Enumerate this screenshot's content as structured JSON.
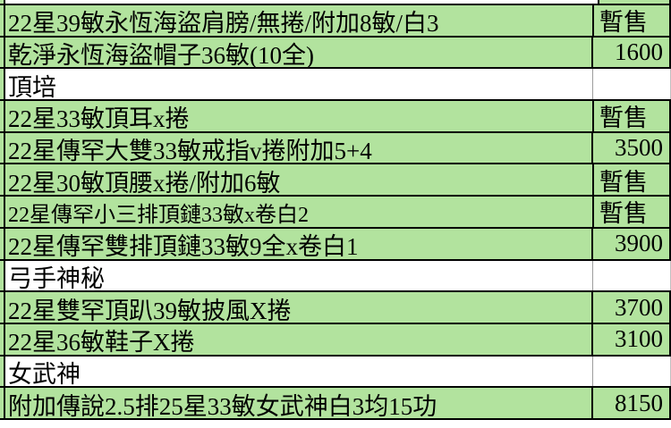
{
  "app": {
    "kind": "spreadsheet-price-list",
    "status_sold_label": "暫售"
  },
  "colors": {
    "row_fill_green": "#b2e39e",
    "grid_border_black": "#000000",
    "gridline_gray": "#9c9c9c"
  },
  "table": {
    "rows": [
      {
        "item": "22星39敏永恆海盜肩膀/無捲/附加8敏/白3",
        "price": "暫售",
        "filled": true,
        "shrink": false
      },
      {
        "item": "乾淨永恆海盜帽子36敏(10全)",
        "price": "1600",
        "filled": true,
        "shrink": false
      },
      {
        "item": "頂培",
        "price": "",
        "filled": false,
        "shrink": false
      },
      {
        "item": "22星33敏頂耳x捲",
        "price": "暫售",
        "filled": true,
        "shrink": false
      },
      {
        "item": "22星傳罕大雙33敏戒指v捲附加5+4",
        "price": "3500",
        "filled": true,
        "shrink": false
      },
      {
        "item": "22星30敏頂腰x捲/附加6敏",
        "price": "暫售",
        "filled": true,
        "shrink": false
      },
      {
        "item": "22星傳罕小三排頂鏈33敏x卷白2",
        "price": "暫售",
        "filled": true,
        "shrink": true
      },
      {
        "item": "22星傳罕雙排頂鏈33敏9全x卷白1",
        "price": "3900",
        "filled": true,
        "shrink": false
      },
      {
        "item": "弓手神秘",
        "price": "",
        "filled": false,
        "shrink": false
      },
      {
        "item": "22星雙罕頂趴39敏披風X捲",
        "price": "3700",
        "filled": true,
        "shrink": false
      },
      {
        "item": "22星36敏鞋子X捲",
        "price": "3100",
        "filled": true,
        "shrink": false
      },
      {
        "item": "女武神",
        "price": "",
        "filled": false,
        "shrink": false
      },
      {
        "item": "附加傳說2.5排25星33敏女武神白3均15功",
        "price": "8150",
        "filled": true,
        "shrink": false
      }
    ]
  }
}
